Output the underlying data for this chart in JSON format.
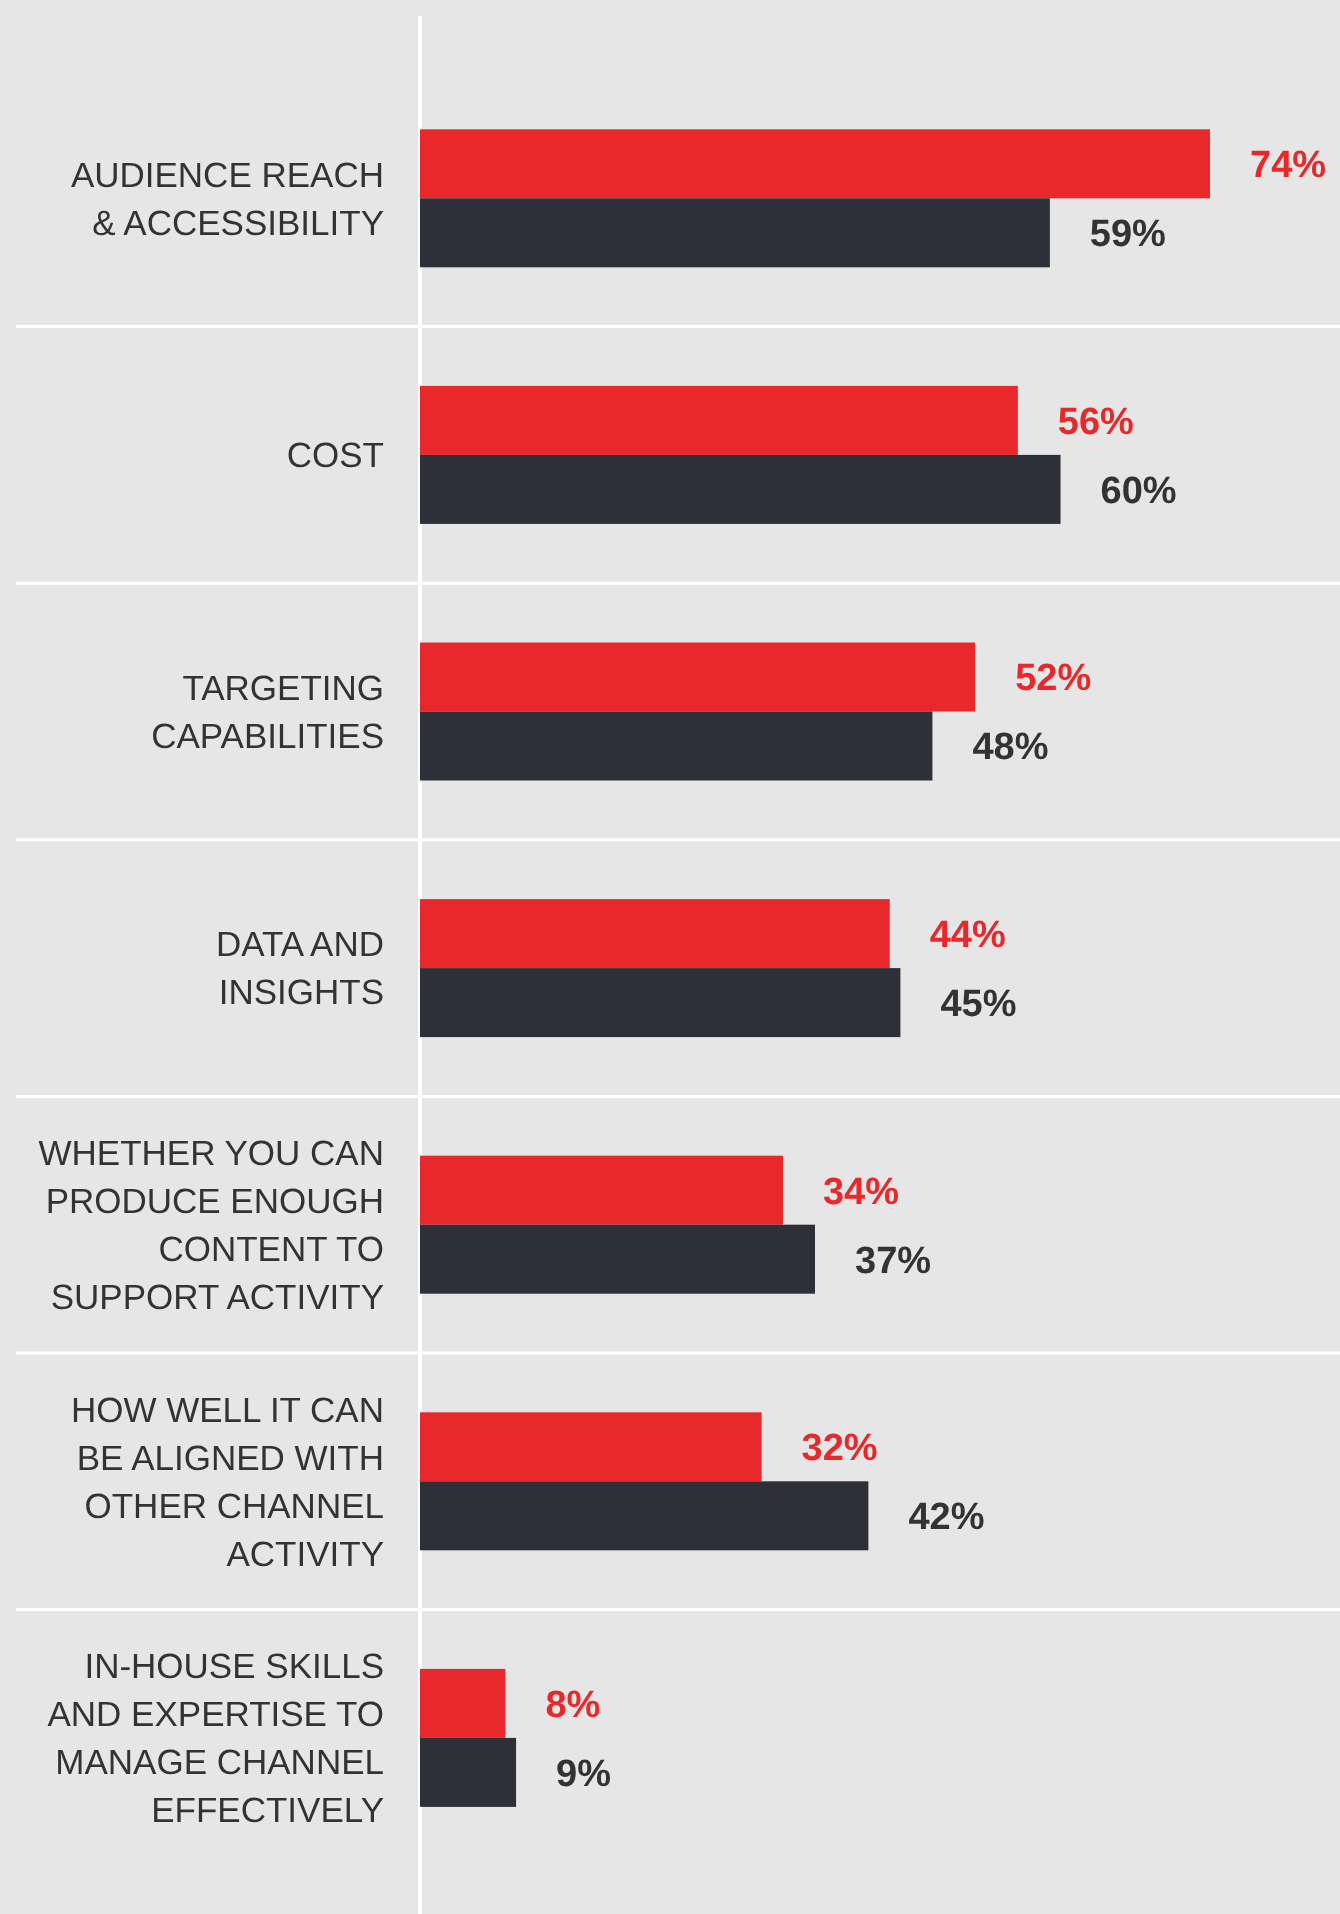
{
  "chart_data": {
    "type": "bar",
    "orientation": "horizontal",
    "categories": [
      "AUDIENCE REACH\n& ACCESSIBILITY",
      "COST",
      "TARGETING\nCAPABILITIES",
      "DATA AND\nINSIGHTS",
      "WHETHER YOU CAN\nPRODUCE ENOUGH\nCONTENT TO\nSUPPORT ACTIVITY",
      "HOW WELL IT CAN\nBE ALIGNED WITH\nOTHER CHANNEL\nACTIVITY",
      "IN-HOUSE SKILLS\nAND EXPERTISE TO\nMANAGE CHANNEL\nEFFECTIVELY"
    ],
    "series": [
      {
        "color": "#e8282b",
        "values": [
          74,
          56,
          52,
          44,
          34,
          32,
          8
        ],
        "value_labels": [
          "74%",
          "56%",
          "52%",
          "44%",
          "34%",
          "32%",
          "8%"
        ]
      },
      {
        "color": "#2e3039",
        "values": [
          59,
          60,
          48,
          45,
          37,
          42,
          9
        ],
        "value_labels": [
          "59%",
          "60%",
          "48%",
          "45%",
          "37%",
          "42%",
          "9%"
        ]
      }
    ]
  }
}
